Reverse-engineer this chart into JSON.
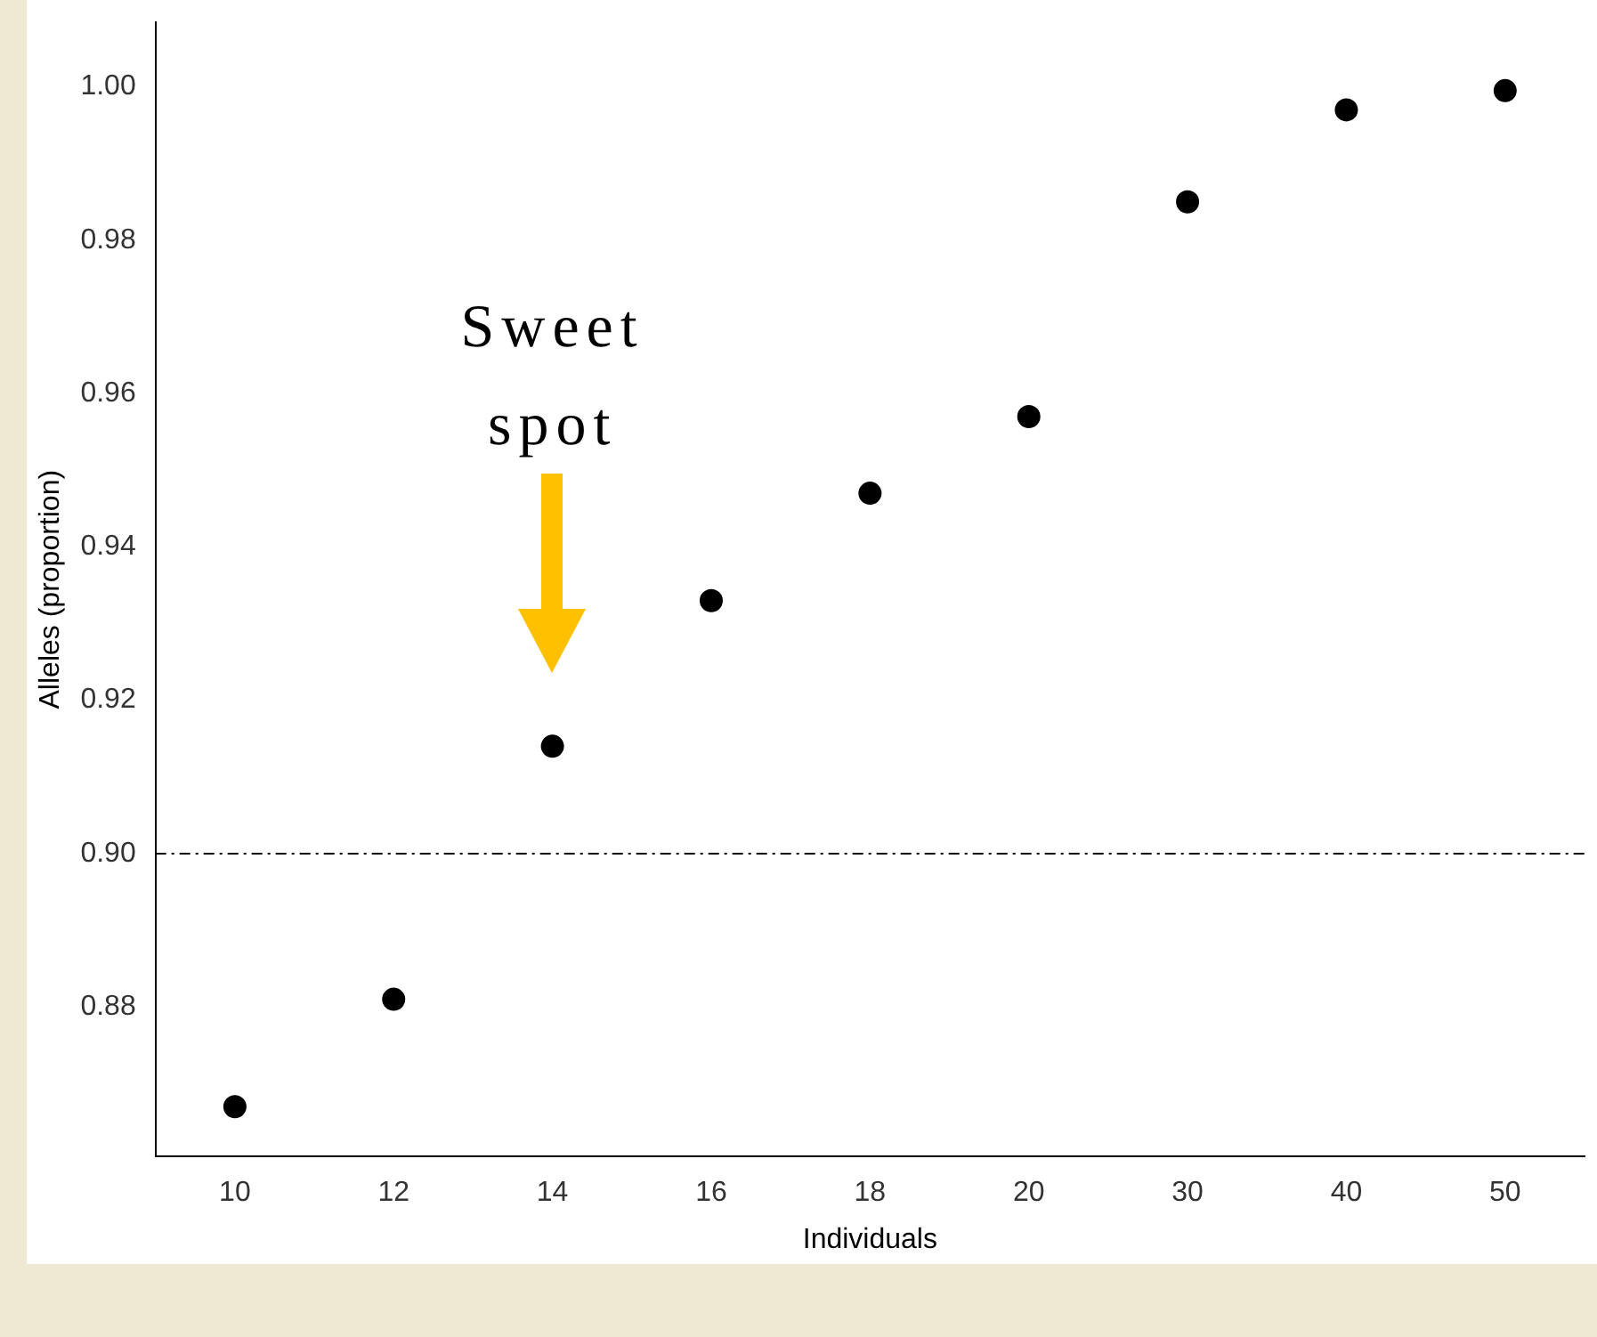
{
  "chart_data": {
    "type": "scatter",
    "xlabel": "Individuals",
    "ylabel": "Alleles (proportion)",
    "categories": [
      "10",
      "12",
      "14",
      "16",
      "18",
      "20",
      "30",
      "40",
      "50"
    ],
    "values": [
      0.867,
      0.881,
      0.914,
      0.933,
      0.947,
      0.957,
      0.985,
      0.997,
      0.9995
    ],
    "color": "#000000",
    "marker": "circle",
    "grid": false,
    "legend": false,
    "ylim": [
      0.8605,
      1.0084
    ],
    "yticks": [
      {
        "value": 0.88,
        "label": "0.88"
      },
      {
        "value": 0.9,
        "label": "0.90"
      },
      {
        "value": 0.92,
        "label": "0.92"
      },
      {
        "value": 0.94,
        "label": "0.94"
      },
      {
        "value": 0.96,
        "label": "0.96"
      },
      {
        "value": 0.98,
        "label": "0.98"
      },
      {
        "value": 1.0,
        "label": "1.00"
      }
    ],
    "ref_lines": [
      {
        "axis": "y",
        "value": 0.9,
        "color": "#000000",
        "line_style": "dashdot"
      }
    ],
    "annotations": [
      "Sweet spot"
    ]
  }
}
